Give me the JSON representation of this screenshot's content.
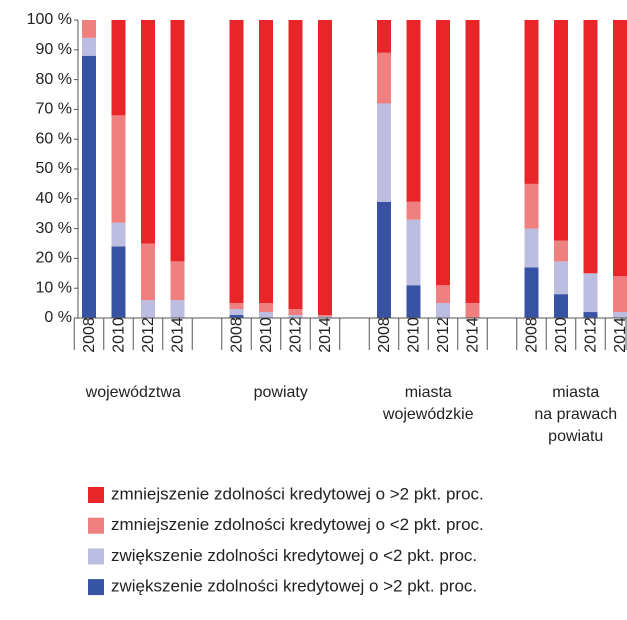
{
  "chart_data": {
    "type": "stacked_bar",
    "categories": [
      "2008",
      "2010",
      "2012",
      "2014",
      "2008",
      "2010",
      "2012",
      "2014",
      "2008",
      "2010",
      "2012",
      "2014",
      "2008",
      "2010",
      "2012",
      "2014"
    ],
    "groups": [
      {
        "label": [
          "województwa"
        ],
        "size": 4
      },
      {
        "label": [
          "powiaty"
        ],
        "size": 4
      },
      {
        "label": [
          "miasta",
          "wojewódzkie"
        ],
        "size": 4
      },
      {
        "label": [
          "miasta",
          "na prawach",
          "powiatu"
        ],
        "size": 4
      }
    ],
    "series": [
      {
        "name": "zwiększenie zdolności kredytowej o >2 pkt. proc.",
        "color": "#3953a4",
        "values": [
          88,
          24,
          0,
          0,
          1,
          0,
          0,
          0,
          39,
          11,
          0,
          0,
          17,
          8,
          2,
          0
        ]
      },
      {
        "name": "zwiększenie zdolności kredytowej o <2 pkt. proc.",
        "color": "#bcbde0",
        "values": [
          6,
          8,
          6,
          6,
          2,
          2,
          1,
          0.5,
          33,
          22,
          5,
          0,
          13,
          11,
          13,
          2
        ]
      },
      {
        "name": "zmniejszenie zdolności kredytowej o <2 pkt. proc.",
        "color": "#f08080",
        "values": [
          6,
          36,
          19,
          13,
          2,
          3,
          2,
          0.5,
          17,
          6,
          6,
          5,
          15,
          7,
          0,
          12
        ]
      },
      {
        "name": "zmniejszenie zdolności kredytowej o >2 pkt. proc.",
        "color": "#e8262a",
        "values": [
          0,
          32,
          75,
          81,
          95,
          95,
          97,
          99,
          11,
          61,
          89,
          95,
          55,
          74,
          85,
          86
        ]
      }
    ],
    "ylim": [
      0,
      100
    ],
    "yticks": [
      {
        "value": 0,
        "label": "0 %"
      },
      {
        "value": 10,
        "label": "10 %"
      },
      {
        "value": 20,
        "label": "20 %"
      },
      {
        "value": 30,
        "label": "30 %"
      },
      {
        "value": 40,
        "label": "40 %"
      },
      {
        "value": 50,
        "label": "50 %"
      },
      {
        "value": 60,
        "label": "60 %"
      },
      {
        "value": 70,
        "label": "70 %"
      },
      {
        "value": 80,
        "label": "80 %"
      },
      {
        "value": 90,
        "label": "90 %"
      },
      {
        "value": 100,
        "label": "100 %"
      }
    ],
    "legend_order": "reversed"
  }
}
